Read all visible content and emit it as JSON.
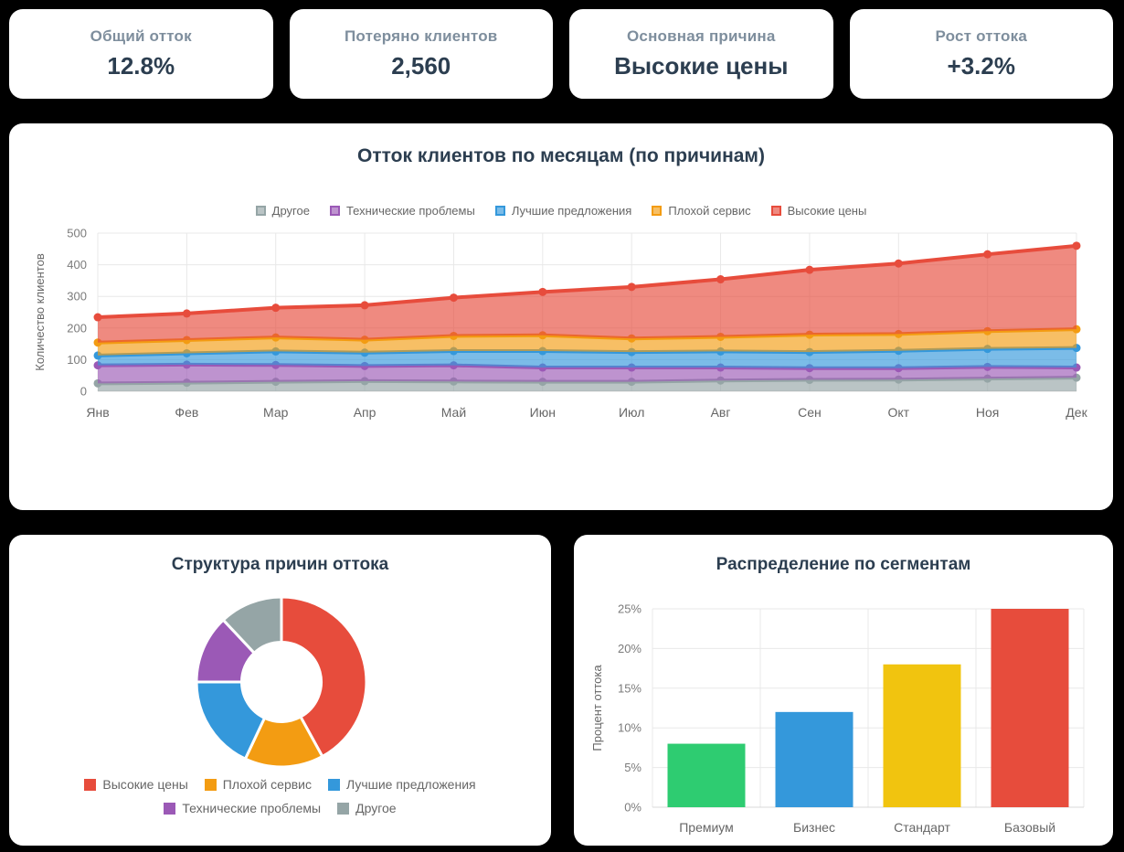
{
  "theme": {
    "background": "#000000",
    "card_background": "#ffffff",
    "title_color": "#2c3e50",
    "kpi_label_color": "#7e8e9d",
    "kpi_value_color": "#2c3e50",
    "tick_color": "#7b7b7b",
    "category_color": "#666666",
    "grid_color": "#e8e8e8",
    "axis_line_color": "#d8d8d8",
    "legend_text_color": "#666666"
  },
  "kpi_cards": [
    {
      "label": "Общий отток",
      "value": "12.8%"
    },
    {
      "label": "Потеряно клиентов",
      "value": "2,560"
    },
    {
      "label": "Основная причина",
      "value": "Высокие цены"
    },
    {
      "label": "Рост оттока",
      "value": "+3.2%"
    }
  ],
  "chart_data": [
    {
      "type": "area",
      "stacked": true,
      "title": "Отток клиентов по месяцам (по причинам)",
      "xlabel": "",
      "ylabel": "Количество клиентов",
      "ylim": [
        0,
        500
      ],
      "yticks": [
        0,
        100,
        200,
        300,
        400,
        500
      ],
      "grid": true,
      "legend_position": "top",
      "categories": [
        "Янв",
        "Фев",
        "Мар",
        "Апр",
        "Май",
        "Июн",
        "Июл",
        "Авг",
        "Сен",
        "Окт",
        "Ноя",
        "Дек"
      ],
      "series": [
        {
          "id": "other",
          "name": "Другое",
          "color": "#95a5a6",
          "values": [
            25,
            27,
            30,
            32,
            31,
            30,
            30,
            34,
            36,
            37,
            40,
            43
          ]
        },
        {
          "id": "technical-issues",
          "name": "Технические проблемы",
          "color": "#9b59b6",
          "values": [
            57,
            57,
            53,
            48,
            51,
            45,
            45,
            41,
            37,
            36,
            37,
            32
          ]
        },
        {
          "id": "better-offers",
          "name": "Лучшие предложения",
          "color": "#3498db",
          "values": [
            31,
            36,
            43,
            42,
            45,
            52,
            49,
            51,
            51,
            55,
            57,
            62
          ]
        },
        {
          "id": "poor-service",
          "name": "Плохой сервис",
          "color": "#f39c12",
          "values": [
            41,
            42,
            44,
            41,
            48,
            50,
            43,
            46,
            55,
            53,
            56,
            59
          ]
        },
        {
          "id": "high-prices",
          "name": "Высокие цены",
          "color": "#e74c3c",
          "values": [
            80,
            84,
            94,
            109,
            121,
            137,
            163,
            182,
            205,
            223,
            243,
            264
          ]
        }
      ]
    },
    {
      "type": "pie",
      "cutout": "47%",
      "title": "Структура причин оттока",
      "labels": [
        "Высокие цены",
        "Плохой сервис",
        "Лучшие предложения",
        "Технические проблемы",
        "Другое"
      ],
      "ids": [
        "high-prices",
        "poor-service",
        "better-offers",
        "technical-issues",
        "other"
      ],
      "values": [
        42,
        15,
        18,
        13,
        12
      ],
      "colors": [
        "#e74c3c",
        "#f39c12",
        "#3498db",
        "#9b59b6",
        "#95a5a6"
      ],
      "legend_position": "bottom"
    },
    {
      "type": "bar",
      "title": "Распределение по сегментам",
      "xlabel": "",
      "ylabel": "Процент оттока",
      "ylim": [
        0,
        25
      ],
      "yticks": [
        0,
        5,
        10,
        15,
        20,
        25
      ],
      "ytick_labels": [
        "0%",
        "5%",
        "10%",
        "15%",
        "20%",
        "25%"
      ],
      "grid": true,
      "categories": [
        "Премиум",
        "Бизнес",
        "Стандарт",
        "Базовый"
      ],
      "ids": [
        "premium",
        "business",
        "standard",
        "basic"
      ],
      "values": [
        8,
        12,
        18,
        25
      ],
      "colors": [
        "#2ecc71",
        "#3498db",
        "#f1c40f",
        "#e74c3c"
      ]
    }
  ]
}
